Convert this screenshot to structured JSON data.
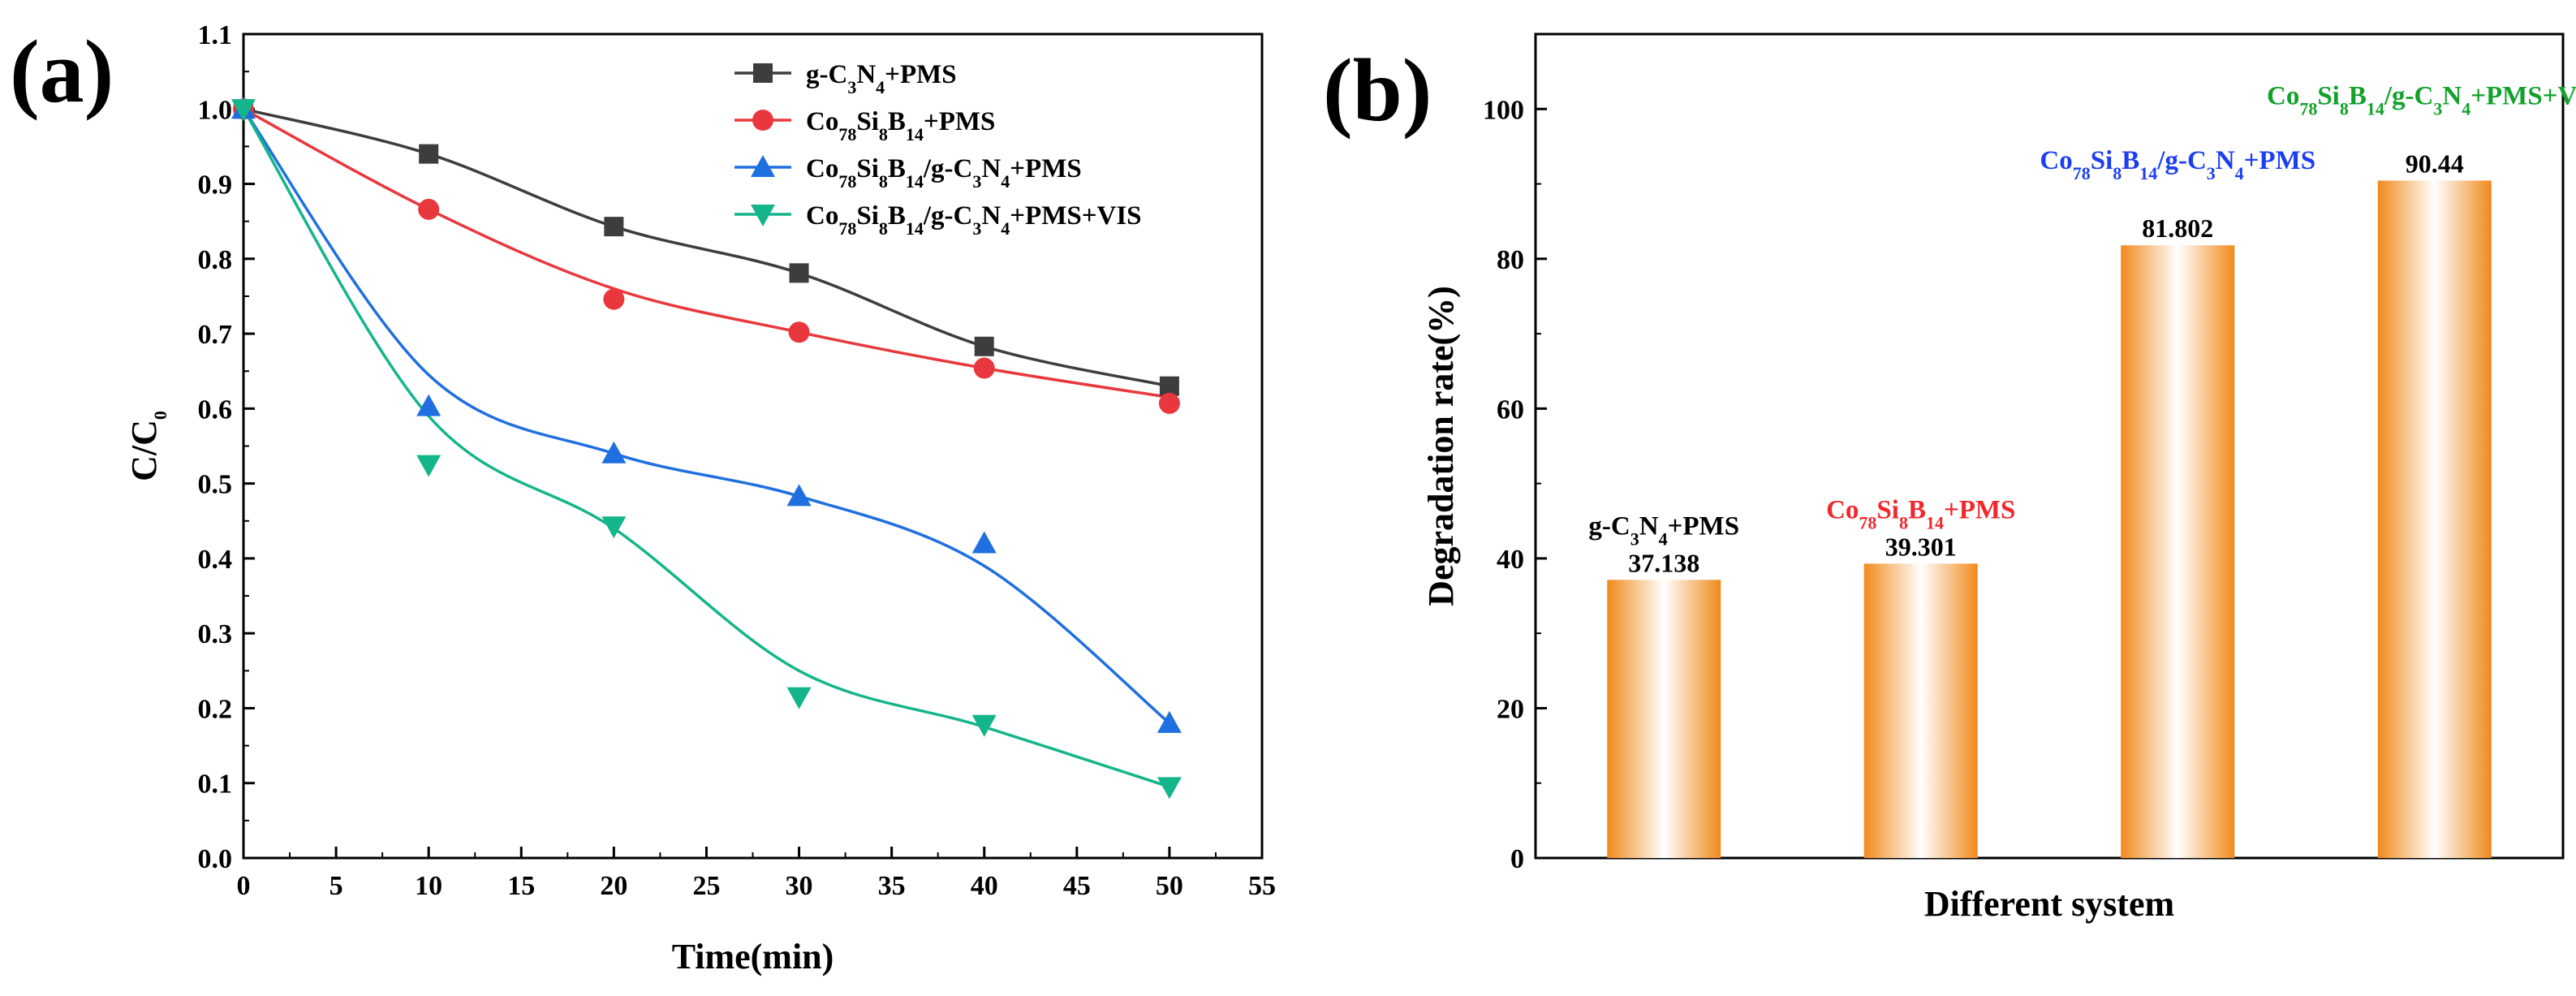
{
  "panels": {
    "a": "(a)",
    "b": "(b)"
  },
  "chart_data": [
    {
      "id": "a",
      "type": "line",
      "xlabel": "Time(min)",
      "ylabel_main": "C/C",
      "ylabel_sub": "0",
      "xlim": [
        0,
        55
      ],
      "ylim": [
        0.0,
        1.1
      ],
      "xticks": [
        0,
        5,
        10,
        15,
        20,
        25,
        30,
        35,
        40,
        45,
        50,
        55
      ],
      "yticks": [
        0.0,
        0.1,
        0.2,
        0.3,
        0.4,
        0.5,
        0.6,
        0.7,
        0.8,
        0.9,
        1.0,
        1.1
      ],
      "x": [
        0,
        10,
        20,
        30,
        40,
        50
      ],
      "legend_position": "top-right",
      "series": [
        {
          "key": "s1",
          "marker": "square",
          "color": "#3d3d3d",
          "label_parts": [
            [
              "g-C",
              "n"
            ],
            [
              "3",
              "sub"
            ],
            [
              "N",
              "n"
            ],
            [
              "4",
              "sub"
            ],
            [
              "+PMS",
              "n"
            ]
          ],
          "values": [
            1.0,
            0.94,
            0.843,
            0.781,
            0.683,
            0.63
          ],
          "fit": [
            [
              0,
              1.0
            ],
            [
              10,
              0.94
            ],
            [
              20,
              0.843
            ],
            [
              30,
              0.781
            ],
            [
              40,
              0.683
            ],
            [
              50,
              0.63
            ]
          ]
        },
        {
          "key": "s2",
          "marker": "circle",
          "color": "#e8383d",
          "label_parts": [
            [
              "Co",
              "n"
            ],
            [
              "78",
              "sub"
            ],
            [
              "Si",
              "n"
            ],
            [
              "8",
              "sub"
            ],
            [
              "B",
              "n"
            ],
            [
              "14",
              "sub"
            ],
            [
              "+PMS",
              "n"
            ]
          ],
          "values": [
            1.0,
            0.866,
            0.746,
            0.702,
            0.654,
            0.607
          ],
          "fit": [
            [
              0,
              1.0
            ],
            [
              10,
              0.866
            ],
            [
              20,
              0.76
            ],
            [
              30,
              0.702
            ],
            [
              40,
              0.654
            ],
            [
              50,
              0.615
            ]
          ]
        },
        {
          "key": "s3",
          "marker": "triangle-up",
          "color": "#1f6fe0",
          "label_parts": [
            [
              "Co",
              "n"
            ],
            [
              "78",
              "sub"
            ],
            [
              "Si",
              "n"
            ],
            [
              "8",
              "sub"
            ],
            [
              "B",
              "n"
            ],
            [
              "14",
              "sub"
            ],
            [
              "/g-C",
              "n"
            ],
            [
              "3",
              "sub"
            ],
            [
              "N",
              "n"
            ],
            [
              "4",
              "sub"
            ],
            [
              "+PMS",
              "n"
            ]
          ],
          "values": [
            1.0,
            0.603,
            0.54,
            0.483,
            0.42,
            0.18
          ],
          "fit": [
            [
              0,
              1.0
            ],
            [
              10,
              0.645
            ],
            [
              20,
              0.54
            ],
            [
              30,
              0.483
            ],
            [
              40,
              0.39
            ],
            [
              50,
              0.18
            ]
          ]
        },
        {
          "key": "s4",
          "marker": "triangle-down",
          "color": "#14b58a",
          "label_parts": [
            [
              "Co",
              "n"
            ],
            [
              "78",
              "sub"
            ],
            [
              "Si",
              "n"
            ],
            [
              "8",
              "sub"
            ],
            [
              "B",
              "n"
            ],
            [
              "14",
              "sub"
            ],
            [
              "/g-C",
              "n"
            ],
            [
              "3",
              "sub"
            ],
            [
              "N",
              "n"
            ],
            [
              "4",
              "sub"
            ],
            [
              "+PMS+VIS",
              "n"
            ]
          ],
          "values": [
            1.0,
            0.525,
            0.443,
            0.215,
            0.178,
            0.095
          ],
          "fit": [
            [
              0,
              1.0
            ],
            [
              10,
              0.59
            ],
            [
              20,
              0.44
            ],
            [
              30,
              0.25
            ],
            [
              40,
              0.175
            ],
            [
              50,
              0.095
            ]
          ]
        }
      ]
    },
    {
      "id": "b",
      "type": "bar",
      "xlabel": "Different system",
      "ylabel": "Degradation rate(%)",
      "ylim": [
        0,
        110
      ],
      "yticks": [
        0,
        20,
        40,
        60,
        80,
        100
      ],
      "bar_color": "#f08a1c",
      "bar_highlight": "#ffffff",
      "categories": [
        {
          "color": "#000000",
          "label_parts": [
            [
              "g-C",
              "n"
            ],
            [
              "3",
              "sub"
            ],
            [
              "N",
              "n"
            ],
            [
              "4",
              "sub"
            ],
            [
              "+PMS",
              "n"
            ]
          ]
        },
        {
          "color": "#f0282d",
          "label_parts": [
            [
              "Co",
              "n"
            ],
            [
              "78",
              "sub"
            ],
            [
              "Si",
              "n"
            ],
            [
              "8",
              "sub"
            ],
            [
              "B",
              "n"
            ],
            [
              "14",
              "sub"
            ],
            [
              "+PMS",
              "n"
            ]
          ]
        },
        {
          "color": "#1b3ff0",
          "label_parts": [
            [
              "Co",
              "n"
            ],
            [
              "78",
              "sub"
            ],
            [
              "Si",
              "n"
            ],
            [
              "8",
              "sub"
            ],
            [
              "B",
              "n"
            ],
            [
              "14",
              "sub"
            ],
            [
              "/g-C",
              "n"
            ],
            [
              "3",
              "sub"
            ],
            [
              "N",
              "n"
            ],
            [
              "4",
              "sub"
            ],
            [
              "+PMS",
              "n"
            ]
          ]
        },
        {
          "color": "#12a12b",
          "label_parts": [
            [
              "Co",
              "n"
            ],
            [
              "78",
              "sub"
            ],
            [
              "Si",
              "n"
            ],
            [
              "8",
              "sub"
            ],
            [
              "B",
              "n"
            ],
            [
              "14",
              "sub"
            ],
            [
              "/g-C",
              "n"
            ],
            [
              "3",
              "sub"
            ],
            [
              "N",
              "n"
            ],
            [
              "4",
              "sub"
            ],
            [
              "+PMS+VIS",
              "n"
            ]
          ]
        }
      ],
      "values": [
        37.138,
        39.301,
        81.802,
        90.44
      ],
      "value_labels": [
        "37.138",
        "39.301",
        "81.802",
        "90.44"
      ]
    }
  ]
}
